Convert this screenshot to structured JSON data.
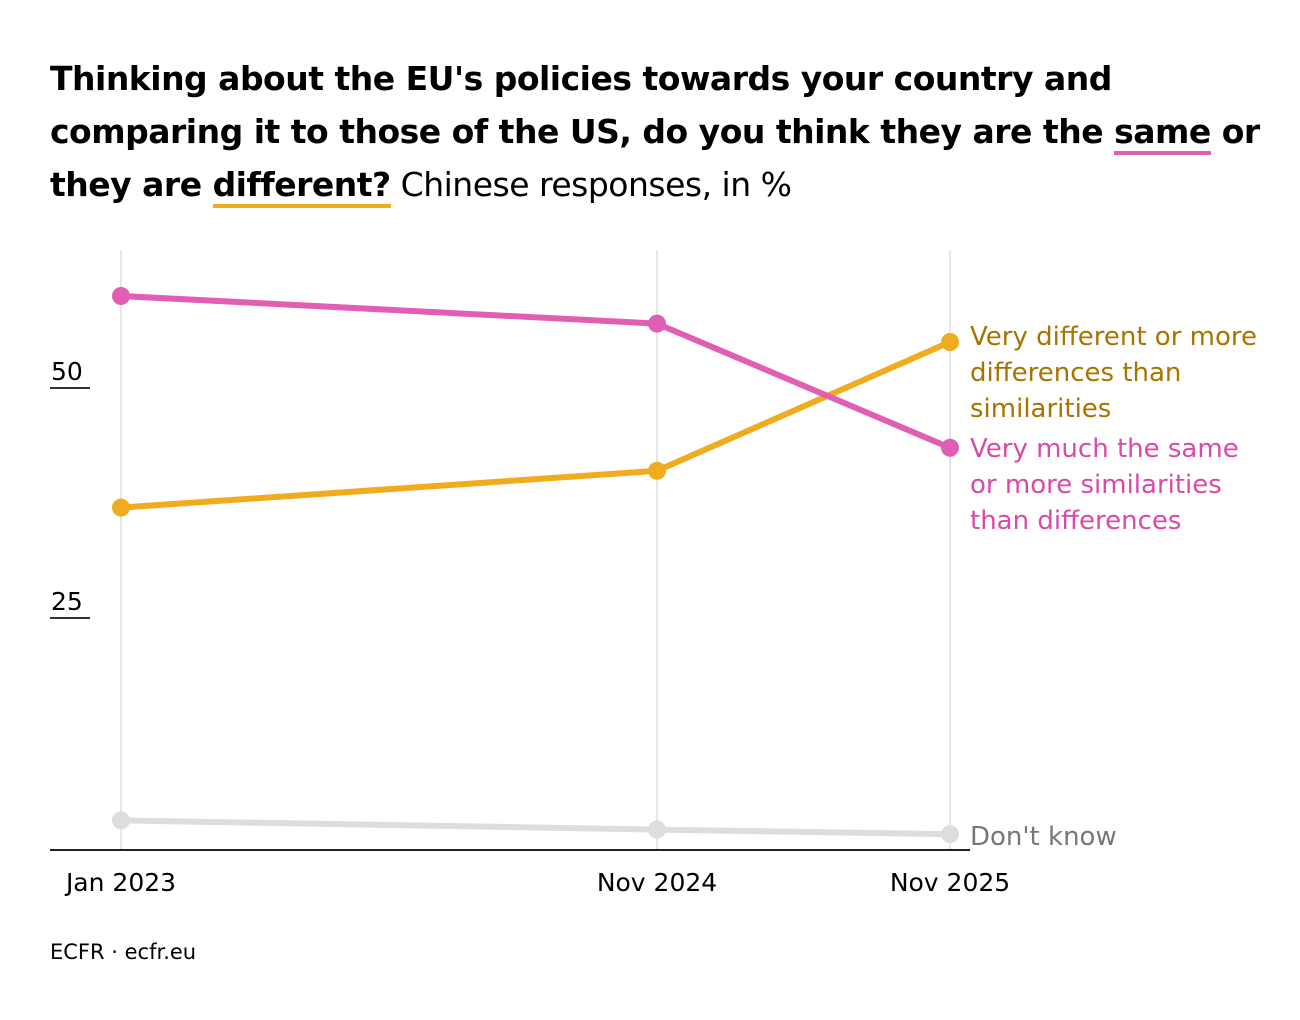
{
  "title": {
    "part1": "Thinking about the EU's policies towards your country and comparing it to those of the US, do you think they are the ",
    "same": "same",
    "part2": " or they are ",
    "different": "different?",
    "subtitle": " Chinese responses, in %"
  },
  "source": "ECFR · ecfr.eu",
  "chart_data": {
    "type": "line",
    "x": [
      "Jan 2023",
      "Nov 2024",
      "Nov 2025"
    ],
    "yticks": [
      25,
      50
    ],
    "ylim": [
      0,
      60
    ],
    "grid": "vertical lines at data points",
    "series": [
      {
        "name": "Very much the same or more similarities than differences",
        "label_lines": [
          "Very much the same",
          "or more similarities",
          "than differences"
        ],
        "values": [
          60,
          57,
          43.5
        ],
        "color": "#e05fb4",
        "label_color": "#d94aa8"
      },
      {
        "name": "Very different or more differences than similarities",
        "label_lines": [
          "Very different or more",
          "differences than",
          "similarities"
        ],
        "values": [
          37,
          41,
          55
        ],
        "color": "#f0ac1e",
        "label_color": "#a87400"
      },
      {
        "name": "Don't know",
        "label_lines": [
          "Don't know"
        ],
        "values": [
          3,
          2,
          1.5
        ],
        "color": "#dddddd",
        "label_color": "#777777"
      }
    ]
  }
}
